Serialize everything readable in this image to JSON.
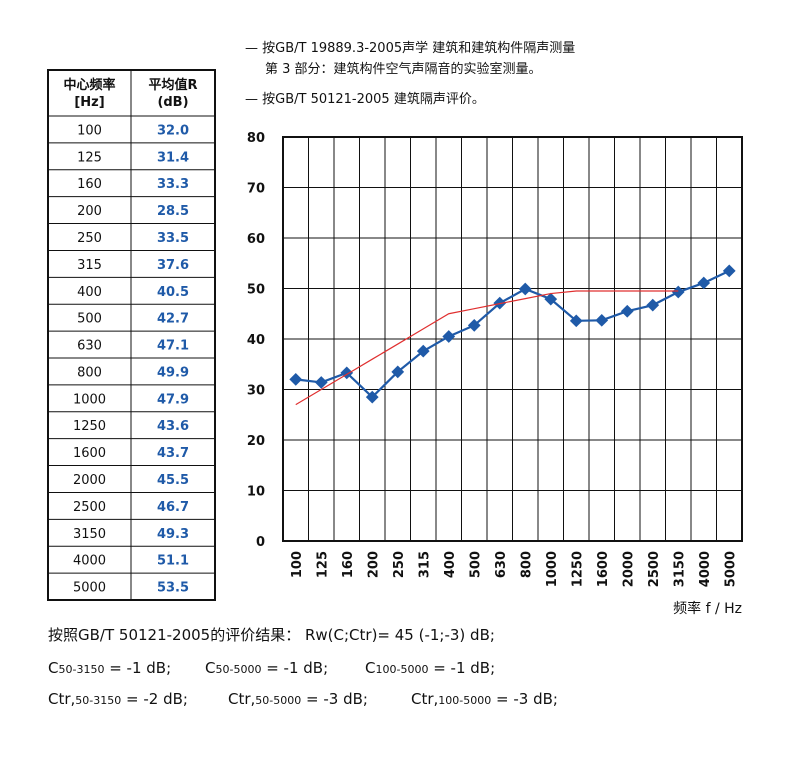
{
  "notes": [
    "— 按GB/T  19889.3-2005声学  建筑和建筑构件隔声测量",
    "第 3 部分：建筑构件空气声隔音的实验室测量。",
    "— 按GB/T  50121-2005  建筑隔声评价。"
  ],
  "table": {
    "header": [
      [
        "中心频率",
        "[Hz]"
      ],
      [
        "平均值R",
        "(dB)"
      ]
    ],
    "rows": [
      [
        "100",
        "32.0"
      ],
      [
        "125",
        "31.4"
      ],
      [
        "160",
        "33.3"
      ],
      [
        "200",
        "28.5"
      ],
      [
        "250",
        "33.5"
      ],
      [
        "315",
        "37.6"
      ],
      [
        "400",
        "40.5"
      ],
      [
        "500",
        "42.7"
      ],
      [
        "630",
        "47.1"
      ],
      [
        "800",
        "49.9"
      ],
      [
        "1000",
        "47.9"
      ],
      [
        "1250",
        "43.6"
      ],
      [
        "1600",
        "43.7"
      ],
      [
        "2000",
        "45.5"
      ],
      [
        "2500",
        "46.7"
      ],
      [
        "3150",
        "49.3"
      ],
      [
        "4000",
        "51.1"
      ],
      [
        "5000",
        "53.5"
      ]
    ]
  },
  "chart_data": {
    "type": "line",
    "x_label": "频率 f / Hz",
    "categories": [
      "100",
      "125",
      "160",
      "200",
      "250",
      "315",
      "400",
      "500",
      "630",
      "800",
      "1000",
      "1250",
      "1600",
      "2000",
      "2500",
      "3150",
      "4000",
      "5000"
    ],
    "series": [
      {
        "color": "#1f5aa8",
        "values": [
          32.0,
          31.4,
          33.3,
          28.5,
          33.5,
          37.6,
          40.5,
          42.7,
          47.1,
          49.9,
          47.9,
          43.6,
          43.7,
          45.5,
          46.7,
          49.3,
          51.1,
          53.5
        ]
      },
      {
        "color": "#e03030",
        "values": [
          27,
          30,
          33,
          36,
          39,
          42,
          45,
          46,
          47,
          48,
          49,
          49.5,
          49.5,
          49.5,
          49.5,
          49.5,
          null,
          null
        ]
      }
    ],
    "ylim": [
      0,
      80
    ],
    "yticks": [
      0,
      10,
      20,
      30,
      40,
      50,
      60,
      70,
      80
    ],
    "grid": true
  },
  "results": {
    "summary": "按照GB/T  50121-2005的评价结果：   Rw(C;Ctr)= 45 (-1;-3)  dB;",
    "lines": [
      [
        {
          "symbol": "C",
          "sub": "50-3150",
          "text": " = -1 dB;"
        },
        {
          "symbol": "C",
          "sub": "50-5000",
          "text": " = -1 dB;"
        },
        {
          "symbol": "C",
          "sub": "100-5000",
          "text": " = -1 dB;"
        }
      ],
      [
        {
          "symbol": "Ctr,",
          "sub": "50-3150",
          "text": " = -2 dB;"
        },
        {
          "symbol": "Ctr,",
          "sub": "50-5000",
          "text": " = -3 dB;"
        },
        {
          "symbol": "Ctr,",
          "sub": "100-5000",
          "text": " = -3 dB;"
        }
      ]
    ]
  }
}
